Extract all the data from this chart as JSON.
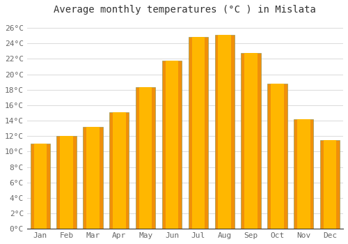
{
  "title": "Average monthly temperatures (°C ) in Mislata",
  "months": [
    "Jan",
    "Feb",
    "Mar",
    "Apr",
    "May",
    "Jun",
    "Jul",
    "Aug",
    "Sep",
    "Oct",
    "Nov",
    "Dec"
  ],
  "values": [
    11.0,
    12.0,
    13.2,
    15.1,
    18.3,
    21.8,
    24.8,
    25.1,
    22.8,
    18.8,
    14.2,
    11.5
  ],
  "bar_color_center": "#FFB700",
  "bar_color_edge": "#F0900A",
  "bar_border_color": "#888844",
  "ylim": [
    0,
    27
  ],
  "yticks": [
    0,
    2,
    4,
    6,
    8,
    10,
    12,
    14,
    16,
    18,
    20,
    22,
    24,
    26
  ],
  "background_color": "#ffffff",
  "grid_color": "#dddddd",
  "title_fontsize": 10,
  "tick_fontsize": 8,
  "tick_color": "#666666",
  "title_color": "#333333"
}
